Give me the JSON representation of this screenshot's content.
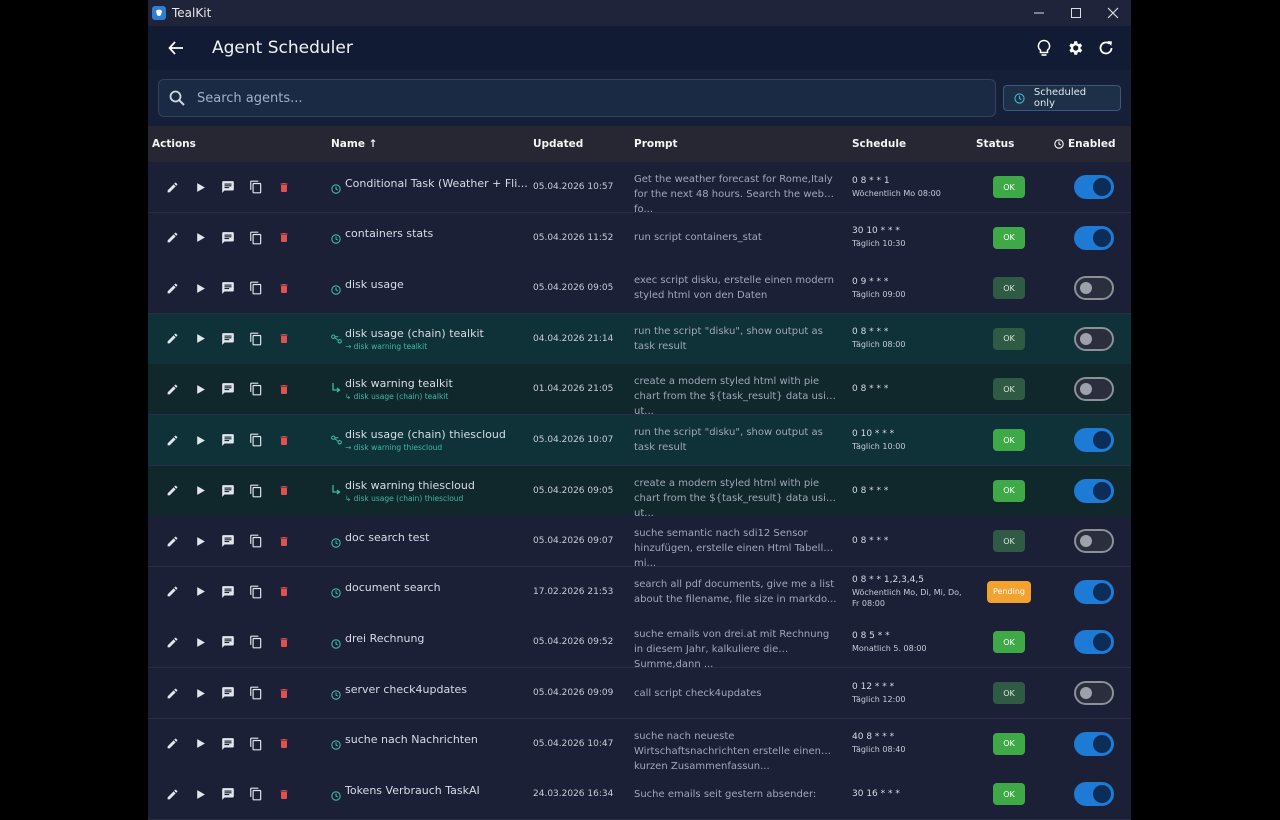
{
  "window": {
    "title": "TealKit"
  },
  "appbar": {
    "title": "Agent Scheduler"
  },
  "search": {
    "placeholder": "Search agents..."
  },
  "filter": {
    "label": "Scheduled only"
  },
  "columns": {
    "actions": "Actions",
    "name": "Name ↑",
    "updated": "Updated",
    "prompt": "Prompt",
    "schedule": "Schedule",
    "status": "Status",
    "enabled": "Enabled"
  },
  "colors": {
    "accent": "#1d7ad5",
    "ok": "#3fa847",
    "pending": "#f3a12f",
    "danger": "#e05252",
    "teal": "#3fb9a5"
  },
  "rows": [
    {
      "name": "Conditional Task (Weather + Fli...",
      "sub": "",
      "icon": "clock",
      "type": "",
      "updated": "05.04.2026 10:57",
      "prompt": "Get the weather forecast for Rome,Italy for the next 48 hours. Search the web fo...",
      "schedule": "0 8 * * 1",
      "schedule_desc": "Wöchentlich Mo 08:00",
      "status": "OK",
      "status_style": "ok-on",
      "enabled": true
    },
    {
      "name": "containers stats",
      "sub": "",
      "icon": "clock",
      "type": "",
      "updated": "05.04.2026 11:52",
      "prompt": "run script containers_stat",
      "schedule": "30 10 * * *",
      "schedule_desc": "Täglich 10:30",
      "status": "OK",
      "status_style": "ok-on",
      "enabled": true
    },
    {
      "name": "disk usage",
      "sub": "",
      "icon": "clock",
      "type": "",
      "updated": "05.04.2026 09:05",
      "prompt": "exec script disku, erstelle einen modern styled html von den Daten",
      "schedule": "0 9 * * *",
      "schedule_desc": "Täglich 09:00",
      "status": "OK",
      "status_style": "ok-off",
      "enabled": false
    },
    {
      "name": "disk usage (chain) tealkit",
      "sub": "→ disk warning tealkit",
      "icon": "chain",
      "type": "chain",
      "updated": "04.04.2026 21:14",
      "prompt": "run the script \"disku\", show output as task result",
      "schedule": "0 8 * * *",
      "schedule_desc": "Täglich 08:00",
      "status": "OK",
      "status_style": "ok-off",
      "enabled": false
    },
    {
      "name": "disk warning tealkit",
      "sub": "↳ disk usage (chain) tealkit",
      "icon": "child",
      "type": "chain-child",
      "updated": "01.04.2026 21:05",
      "prompt": "create a modern styled html with pie chart from the ${task_result} data using ut...",
      "schedule": "0 8 * * *",
      "schedule_desc": "",
      "status": "OK",
      "status_style": "ok-off",
      "enabled": false
    },
    {
      "name": "disk usage (chain) thiescloud",
      "sub": "→ disk warning thiescloud",
      "icon": "chain",
      "type": "chain",
      "updated": "05.04.2026 10:07",
      "prompt": "run the script \"disku\", show output as task result",
      "schedule": "0 10 * * *",
      "schedule_desc": "Täglich 10:00",
      "status": "OK",
      "status_style": "ok-on",
      "enabled": true
    },
    {
      "name": "disk warning thiescloud",
      "sub": "↳ disk usage (chain) thiescloud",
      "icon": "child",
      "type": "chain-child",
      "updated": "05.04.2026 09:05",
      "prompt": "create a modern styled html with pie chart from the ${task_result} data using ut...",
      "schedule": "0 8 * * *",
      "schedule_desc": "",
      "status": "OK",
      "status_style": "ok-on",
      "enabled": true
    },
    {
      "name": "doc search test",
      "sub": "",
      "icon": "clock",
      "type": "",
      "updated": "05.04.2026 09:07",
      "prompt": "suche semantic nach sdi12 Sensor hinzufügen, erstelle einen Html Tabelle mi...",
      "schedule": "0 8 * * *",
      "schedule_desc": "",
      "status": "OK",
      "status_style": "ok-off",
      "enabled": false
    },
    {
      "name": "document search",
      "sub": "",
      "icon": "clock",
      "type": "",
      "updated": "17.02.2026 21:53",
      "prompt": "search all pdf documents, give me a list about the filename, file size in markdo...",
      "schedule": "0 8 * * 1,2,3,4,5",
      "schedule_desc": "Wöchentlich Mo, Di, Mi, Do, Fr 08:00",
      "status": "Pending",
      "status_style": "pending",
      "enabled": true
    },
    {
      "name": "drei Rechnung",
      "sub": "",
      "icon": "clock",
      "type": "",
      "updated": "05.04.2026 09:52",
      "prompt": "suche emails von drei.at mit Rechnung in diesem Jahr, kalkuliere die Summe,dann ...",
      "schedule": "0 8 5 * *",
      "schedule_desc": "Monatlich 5. 08:00",
      "status": "OK",
      "status_style": "ok-on",
      "enabled": true
    },
    {
      "name": "server check4updates",
      "sub": "",
      "icon": "clock",
      "type": "",
      "updated": "05.04.2026 09:09",
      "prompt": "call script check4updates",
      "schedule": "0 12 * * *",
      "schedule_desc": "Täglich 12:00",
      "status": "OK",
      "status_style": "ok-off",
      "enabled": false
    },
    {
      "name": "suche nach Nachrichten",
      "sub": "",
      "icon": "clock",
      "type": "",
      "updated": "05.04.2026 10:47",
      "prompt": "suche nach  neueste Wirtschaftsnachrichten erstelle  einen kurzen Zusammenfassun...",
      "schedule": "40 8 * * *",
      "schedule_desc": "Täglich 08:40",
      "status": "OK",
      "status_style": "ok-on",
      "enabled": true
    },
    {
      "name": "Tokens Verbrauch TaskAI",
      "sub": "",
      "icon": "clock",
      "type": "",
      "updated": "24.03.2026 16:34",
      "prompt": "Suche emails seit gestern absender:",
      "schedule": "30 16 * * *",
      "schedule_desc": "",
      "status": "OK",
      "status_style": "ok-on",
      "enabled": true
    }
  ]
}
